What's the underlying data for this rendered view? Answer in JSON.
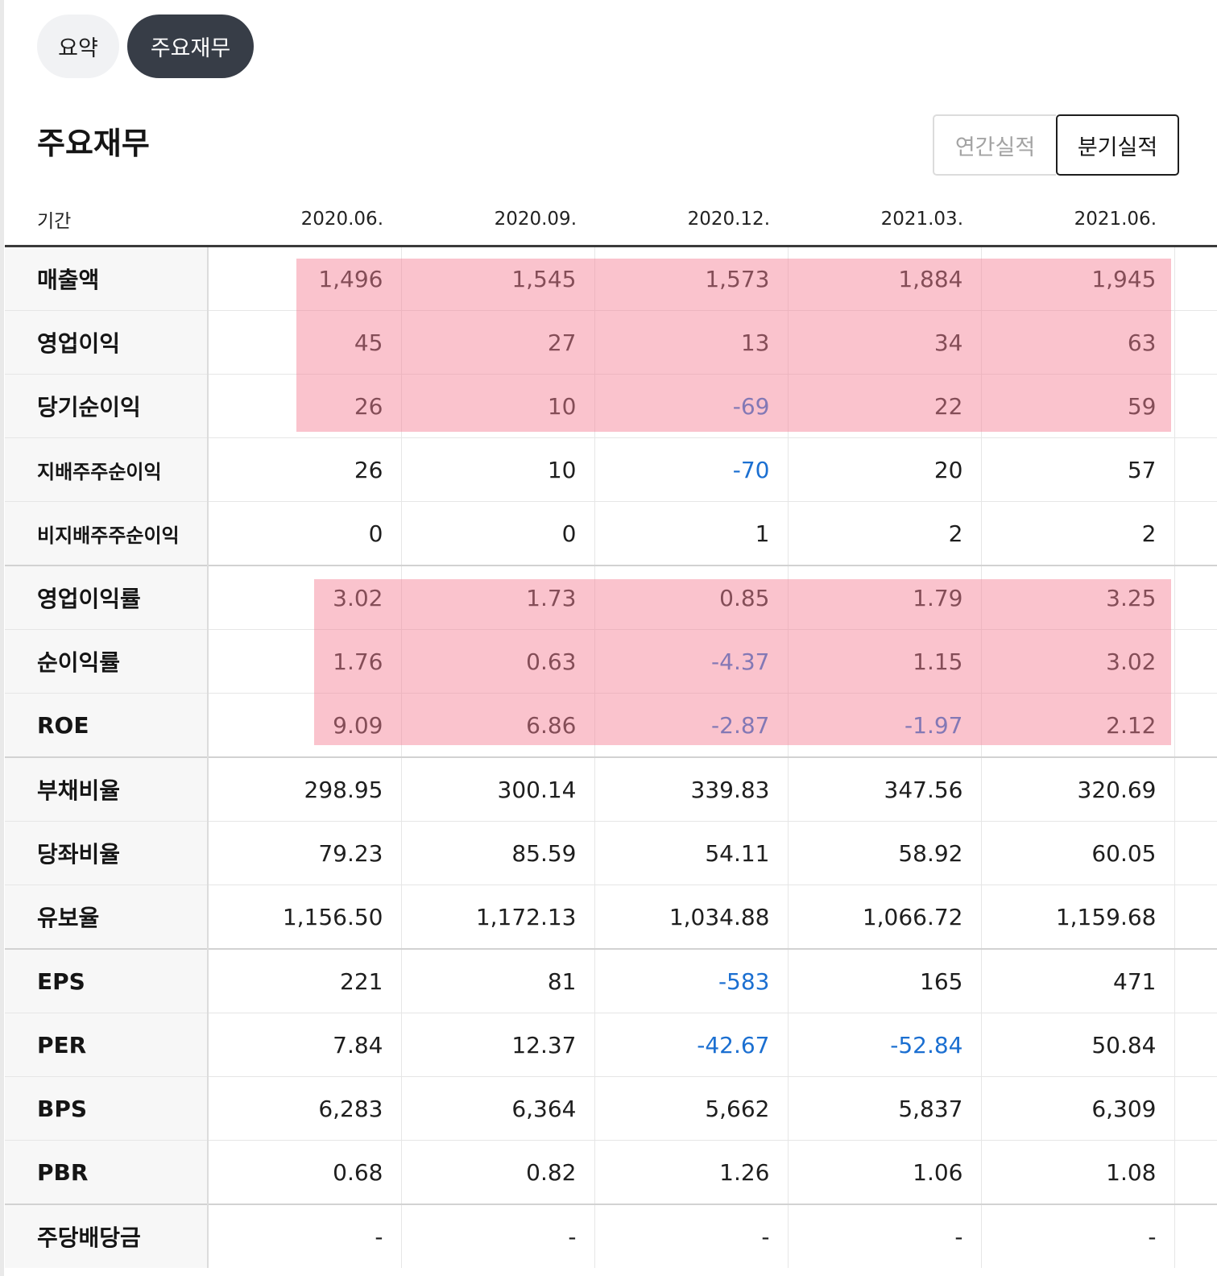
{
  "tabs": [
    {
      "label": "요약",
      "active": false
    },
    {
      "label": "주요재무",
      "active": true
    }
  ],
  "section": {
    "title": "주요재무"
  },
  "toggle": {
    "annual_label": "연간실적",
    "quarterly_label": "분기실적",
    "selected": "분기실적"
  },
  "table": {
    "period_header": "기간",
    "periods": [
      "2020.06.",
      "2020.09.",
      "2020.12.",
      "2021.03.",
      "2021.06."
    ],
    "rows": [
      {
        "label": "매출액",
        "values": [
          "1,496",
          "1,545",
          "1,573",
          "1,884",
          "1,945"
        ]
      },
      {
        "label": "영업이익",
        "values": [
          "45",
          "27",
          "13",
          "34",
          "63"
        ]
      },
      {
        "label": "당기순이익",
        "values": [
          "26",
          "10",
          "-69",
          "22",
          "59"
        ]
      },
      {
        "label": "지배주주순이익",
        "values": [
          "26",
          "10",
          "-70",
          "20",
          "57"
        ]
      },
      {
        "label": "비지배주주순이익",
        "values": [
          "0",
          "0",
          "1",
          "2",
          "2"
        ]
      },
      {
        "label": "영업이익률",
        "values": [
          "3.02",
          "1.73",
          "0.85",
          "1.79",
          "3.25"
        ]
      },
      {
        "label": "순이익률",
        "values": [
          "1.76",
          "0.63",
          "-4.37",
          "1.15",
          "3.02"
        ]
      },
      {
        "label": "ROE",
        "values": [
          "9.09",
          "6.86",
          "-2.87",
          "-1.97",
          "2.12"
        ]
      },
      {
        "label": "부채비율",
        "values": [
          "298.95",
          "300.14",
          "339.83",
          "347.56",
          "320.69"
        ]
      },
      {
        "label": "당좌비율",
        "values": [
          "79.23",
          "85.59",
          "54.11",
          "58.92",
          "60.05"
        ]
      },
      {
        "label": "유보율",
        "values": [
          "1,156.50",
          "1,172.13",
          "1,034.88",
          "1,066.72",
          "1,159.68"
        ]
      },
      {
        "label": "EPS",
        "values": [
          "221",
          "81",
          "-583",
          "165",
          "471"
        ]
      },
      {
        "label": "PER",
        "values": [
          "7.84",
          "12.37",
          "-42.67",
          "-52.84",
          "50.84"
        ]
      },
      {
        "label": "BPS",
        "values": [
          "6,283",
          "6,364",
          "5,662",
          "5,837",
          "6,309"
        ]
      },
      {
        "label": "PBR",
        "values": [
          "0.68",
          "0.82",
          "1.26",
          "1.06",
          "1.08"
        ]
      },
      {
        "label": "주당배당금",
        "values": [
          "-",
          "-",
          "-",
          "-",
          "-"
        ]
      }
    ]
  },
  "colors": {
    "negative_value": "#1b6fd1",
    "highlight": "#f48296",
    "active_pill": "#373d47"
  }
}
